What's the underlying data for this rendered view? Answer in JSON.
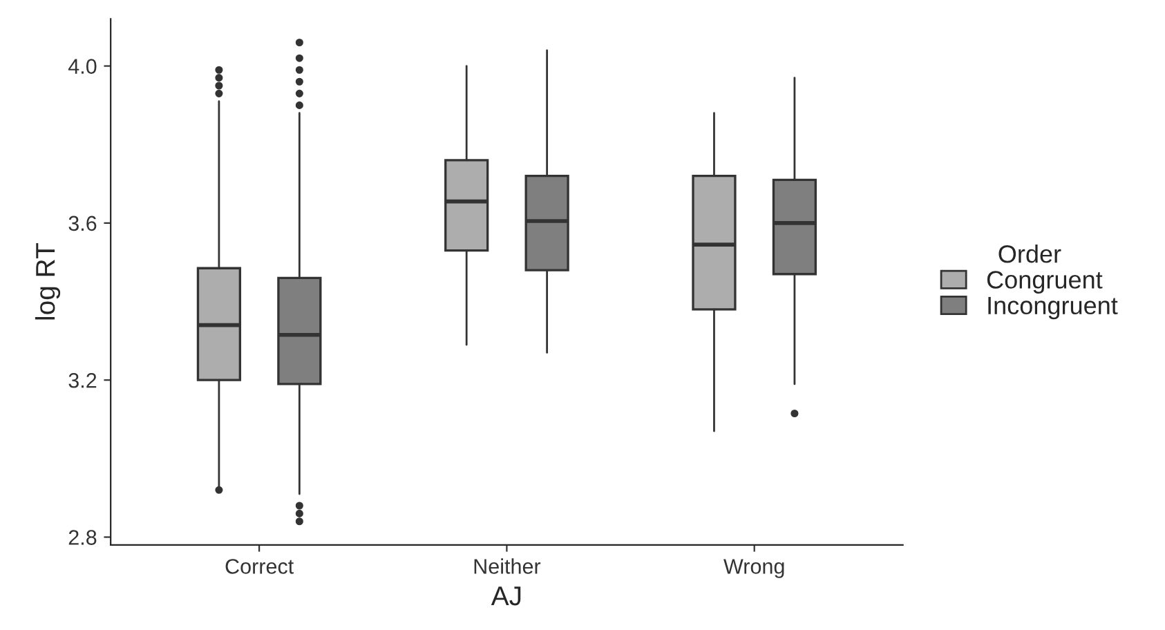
{
  "chart_data": {
    "type": "box",
    "xlabel": "AJ",
    "ylabel": "log RT",
    "legend_title": "Order",
    "legend": "right",
    "grid": false,
    "categories": [
      "Correct",
      "Neither",
      "Wrong"
    ],
    "ylim": [
      2.78,
      4.12
    ],
    "yticks": [
      2.8,
      3.2,
      3.6,
      {
        "value": 4,
        "label": "4.0"
      }
    ],
    "series": [
      {
        "name": "Congruent",
        "color": "#adadad",
        "boxes": [
          {
            "low": 2.93,
            "q1": 3.2,
            "median": 3.34,
            "q3": 3.485,
            "high": 3.91,
            "outliers": [
              2.92,
              3.93,
              3.95,
              3.97,
              3.99
            ]
          },
          {
            "low": 3.29,
            "q1": 3.53,
            "median": 3.655,
            "q3": 3.76,
            "high": 4.0
          },
          {
            "low": 3.07,
            "q1": 3.38,
            "median": 3.545,
            "q3": 3.72,
            "high": 3.88
          }
        ]
      },
      {
        "name": "Incongruent",
        "color": "#7f7f7f",
        "boxes": [
          {
            "low": 2.91,
            "q1": 3.19,
            "median": 3.315,
            "q3": 3.46,
            "high": 3.88,
            "outliers": [
              2.84,
              2.86,
              2.88,
              3.9,
              3.93,
              3.96,
              3.99,
              4.02,
              4.06
            ]
          },
          {
            "low": 3.27,
            "q1": 3.48,
            "median": 3.605,
            "q3": 3.72,
            "high": 4.04
          },
          {
            "low": 3.19,
            "q1": 3.47,
            "median": 3.6,
            "q3": 3.71,
            "high": 3.97,
            "outliers": [
              3.115
            ]
          }
        ]
      }
    ]
  }
}
